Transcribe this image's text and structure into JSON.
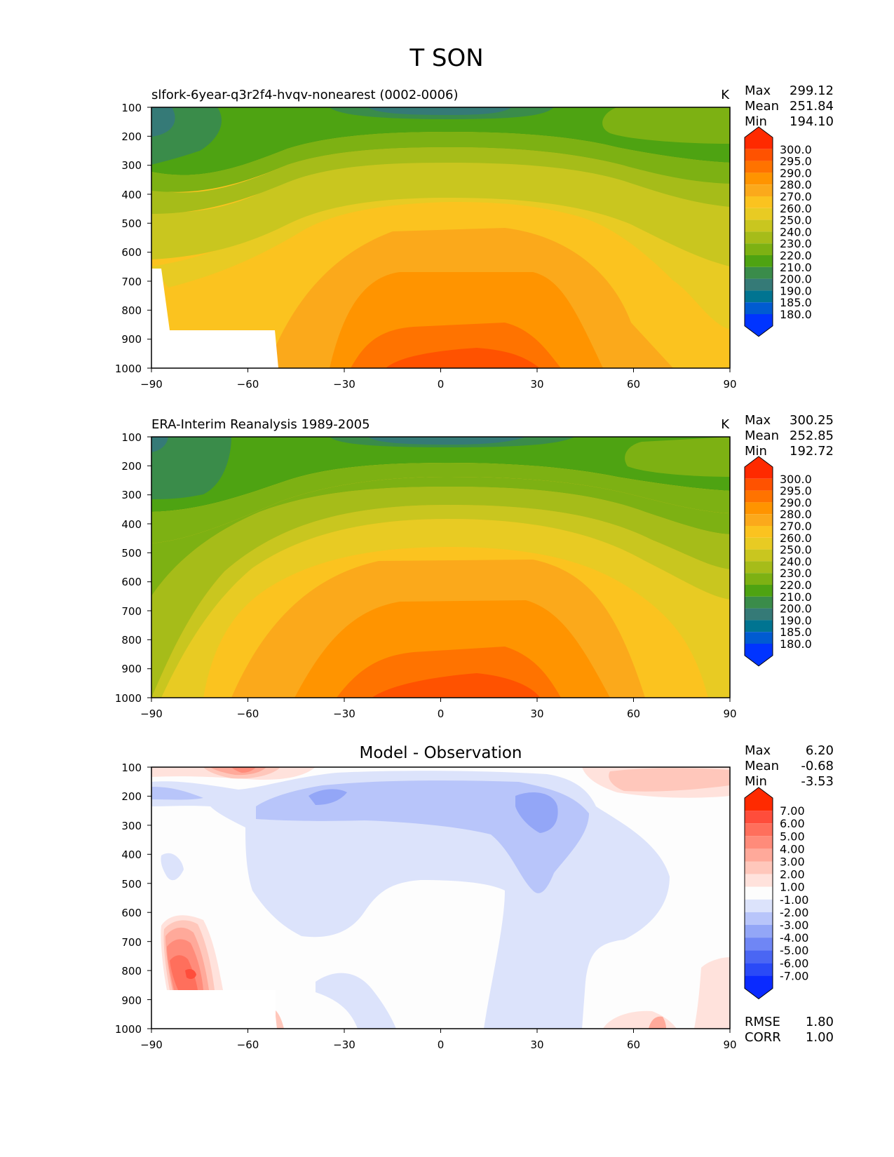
{
  "figure_title": "T SON",
  "chart_data": [
    {
      "type": "contour",
      "title": "slfork-6year-q3r2f4-hvqv-nonearest (0002-0006)",
      "units": "K",
      "stats": {
        "max_label": "Max",
        "max": "299.12",
        "mean_label": "Mean",
        "mean": "251.84",
        "min_label": "Min",
        "min": "194.10"
      },
      "x_ticks": [
        "−90",
        "−60",
        "−30",
        "0",
        "30",
        "60",
        "90"
      ],
      "y_ticks": [
        "100",
        "200",
        "300",
        "400",
        "500",
        "600",
        "700",
        "800",
        "900",
        "1000"
      ],
      "xlim": [
        -90,
        90
      ],
      "ylim": [
        1000,
        100
      ],
      "colorbar": {
        "levels": [
          "300.0",
          "295.0",
          "290.0",
          "280.0",
          "270.0",
          "260.0",
          "250.0",
          "240.0",
          "230.0",
          "220.0",
          "210.0",
          "200.0",
          "190.0",
          "185.0",
          "180.0"
        ],
        "colors": [
          "#ff2a00",
          "#ff5200",
          "#ff7300",
          "#ff9400",
          "#fba91b",
          "#fbc31f",
          "#e8cb23",
          "#c9c61f",
          "#a6bc19",
          "#7db113",
          "#4ea312",
          "#3a8c4a",
          "#357a77",
          "#007491",
          "#005bd1",
          "#0034ff"
        ]
      },
      "field_summary": {
        "max": 299.12,
        "mean": 251.84,
        "min": 194.1
      }
    },
    {
      "type": "contour",
      "title": "ERA-Interim Reanalysis 1989-2005",
      "units": "K",
      "stats": {
        "max_label": "Max",
        "max": "300.25",
        "mean_label": "Mean",
        "mean": "252.85",
        "min_label": "Min",
        "min": "192.72"
      },
      "x_ticks": [
        "−90",
        "−60",
        "−30",
        "0",
        "30",
        "60",
        "90"
      ],
      "y_ticks": [
        "100",
        "200",
        "300",
        "400",
        "500",
        "600",
        "700",
        "800",
        "900",
        "1000"
      ],
      "xlim": [
        -90,
        90
      ],
      "ylim": [
        1000,
        100
      ],
      "colorbar": {
        "levels": [
          "300.0",
          "295.0",
          "290.0",
          "280.0",
          "270.0",
          "260.0",
          "250.0",
          "240.0",
          "230.0",
          "220.0",
          "210.0",
          "200.0",
          "190.0",
          "185.0",
          "180.0"
        ],
        "colors": [
          "#ff2a00",
          "#ff5200",
          "#ff7300",
          "#ff9400",
          "#fba91b",
          "#fbc31f",
          "#e8cb23",
          "#c9c61f",
          "#a6bc19",
          "#7db113",
          "#4ea312",
          "#3a8c4a",
          "#357a77",
          "#007491",
          "#005bd1",
          "#0034ff"
        ]
      },
      "field_summary": {
        "max": 300.25,
        "mean": 252.85,
        "min": 192.72
      }
    },
    {
      "type": "contour",
      "title": "Model - Observation",
      "units": "",
      "stats": {
        "max_label": "Max",
        "max": "6.20",
        "mean_label": "Mean",
        "mean": "-0.68",
        "min_label": "Min",
        "min": "-3.53"
      },
      "x_ticks": [
        "−90",
        "−60",
        "−30",
        "0",
        "30",
        "60",
        "90"
      ],
      "y_ticks": [
        "100",
        "200",
        "300",
        "400",
        "500",
        "600",
        "700",
        "800",
        "900",
        "1000"
      ],
      "xlim": [
        -90,
        90
      ],
      "ylim": [
        1000,
        100
      ],
      "colorbar": {
        "levels": [
          "7.00",
          "6.00",
          "5.00",
          "4.00",
          "3.00",
          "2.00",
          "1.00",
          "-1.00",
          "-2.00",
          "-3.00",
          "-4.00",
          "-5.00",
          "-6.00",
          "-7.00"
        ],
        "colors": [
          "#ff2a00",
          "#ff4d3b",
          "#ff6f5c",
          "#ff8b7a",
          "#ffa99a",
          "#ffc7bb",
          "#ffe2dc",
          "#fdfdfd",
          "#dce3fb",
          "#b8c5fa",
          "#93a6f7",
          "#6f86f5",
          "#4a66f3",
          "#2a4af7",
          "#0a2aff"
        ]
      },
      "error_stats": {
        "rmse_label": "RMSE",
        "rmse": "1.80",
        "corr_label": "CORR",
        "corr": "1.00"
      },
      "field_summary": {
        "max": 6.2,
        "mean": -0.68,
        "min": -3.53
      }
    }
  ]
}
